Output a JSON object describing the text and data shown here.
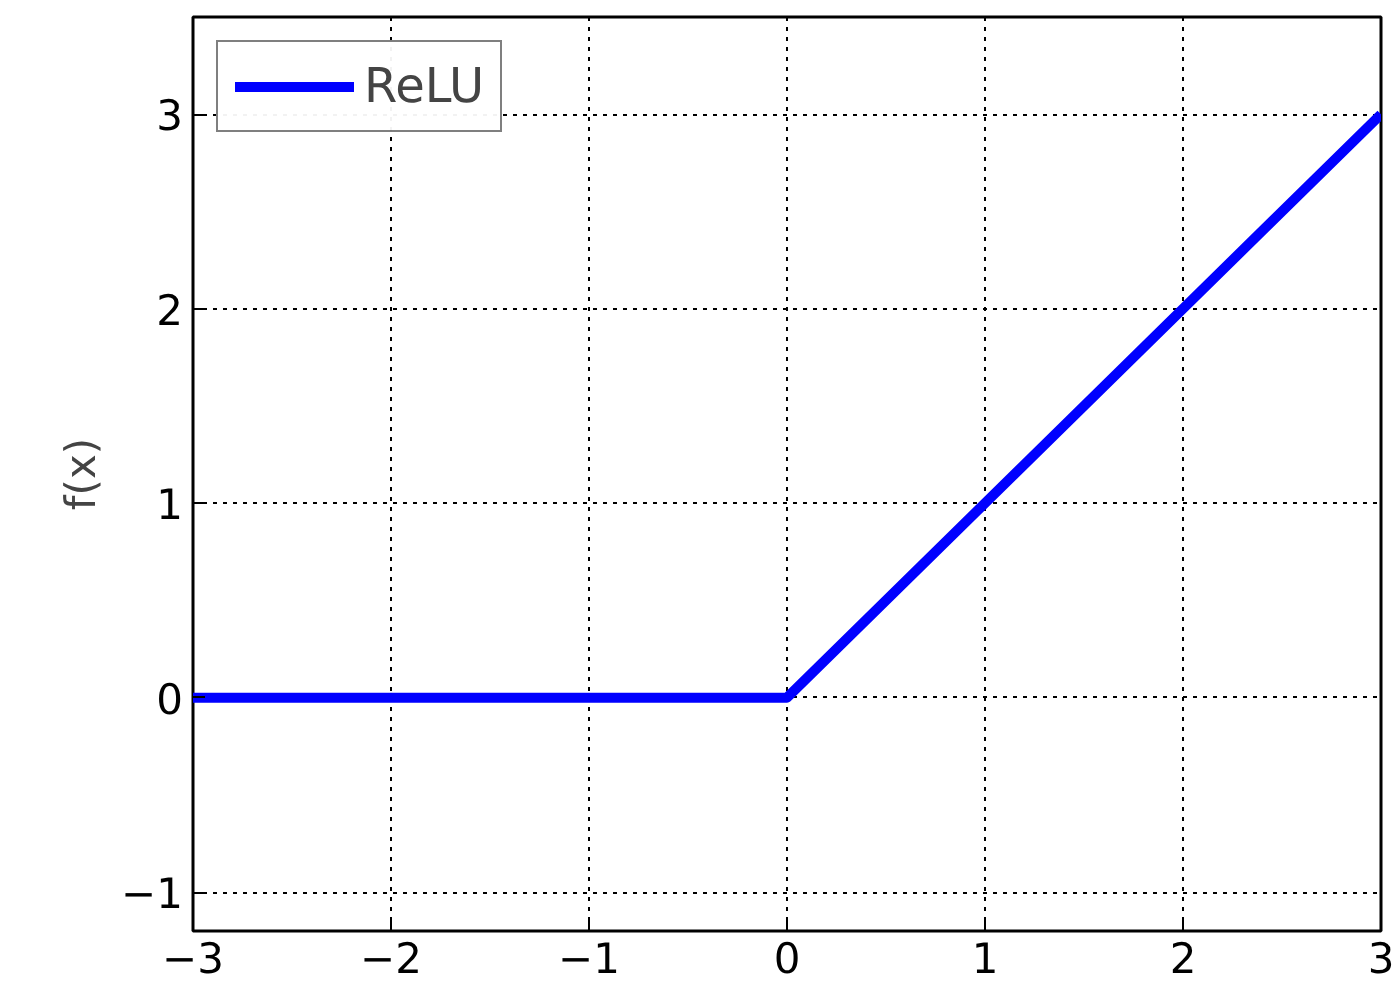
{
  "chart_data": {
    "type": "line",
    "ylabel": "f(x)",
    "x": [
      -3,
      0,
      3
    ],
    "series": [
      {
        "name": "ReLU",
        "color": "#0000ff",
        "values": [
          0,
          0,
          3
        ]
      }
    ],
    "xlim": [
      -3,
      3
    ],
    "ylim": [
      -1.2,
      3.5
    ],
    "xticks": [
      {
        "value": -3,
        "label": "−3"
      },
      {
        "value": -2,
        "label": "−2"
      },
      {
        "value": -1,
        "label": "−1"
      },
      0,
      1,
      2,
      3
    ],
    "yticks": [
      {
        "value": -1,
        "label": "−1"
      },
      0,
      1,
      2,
      3
    ],
    "grid": true,
    "legend": "top left",
    "line_style": "solid"
  }
}
